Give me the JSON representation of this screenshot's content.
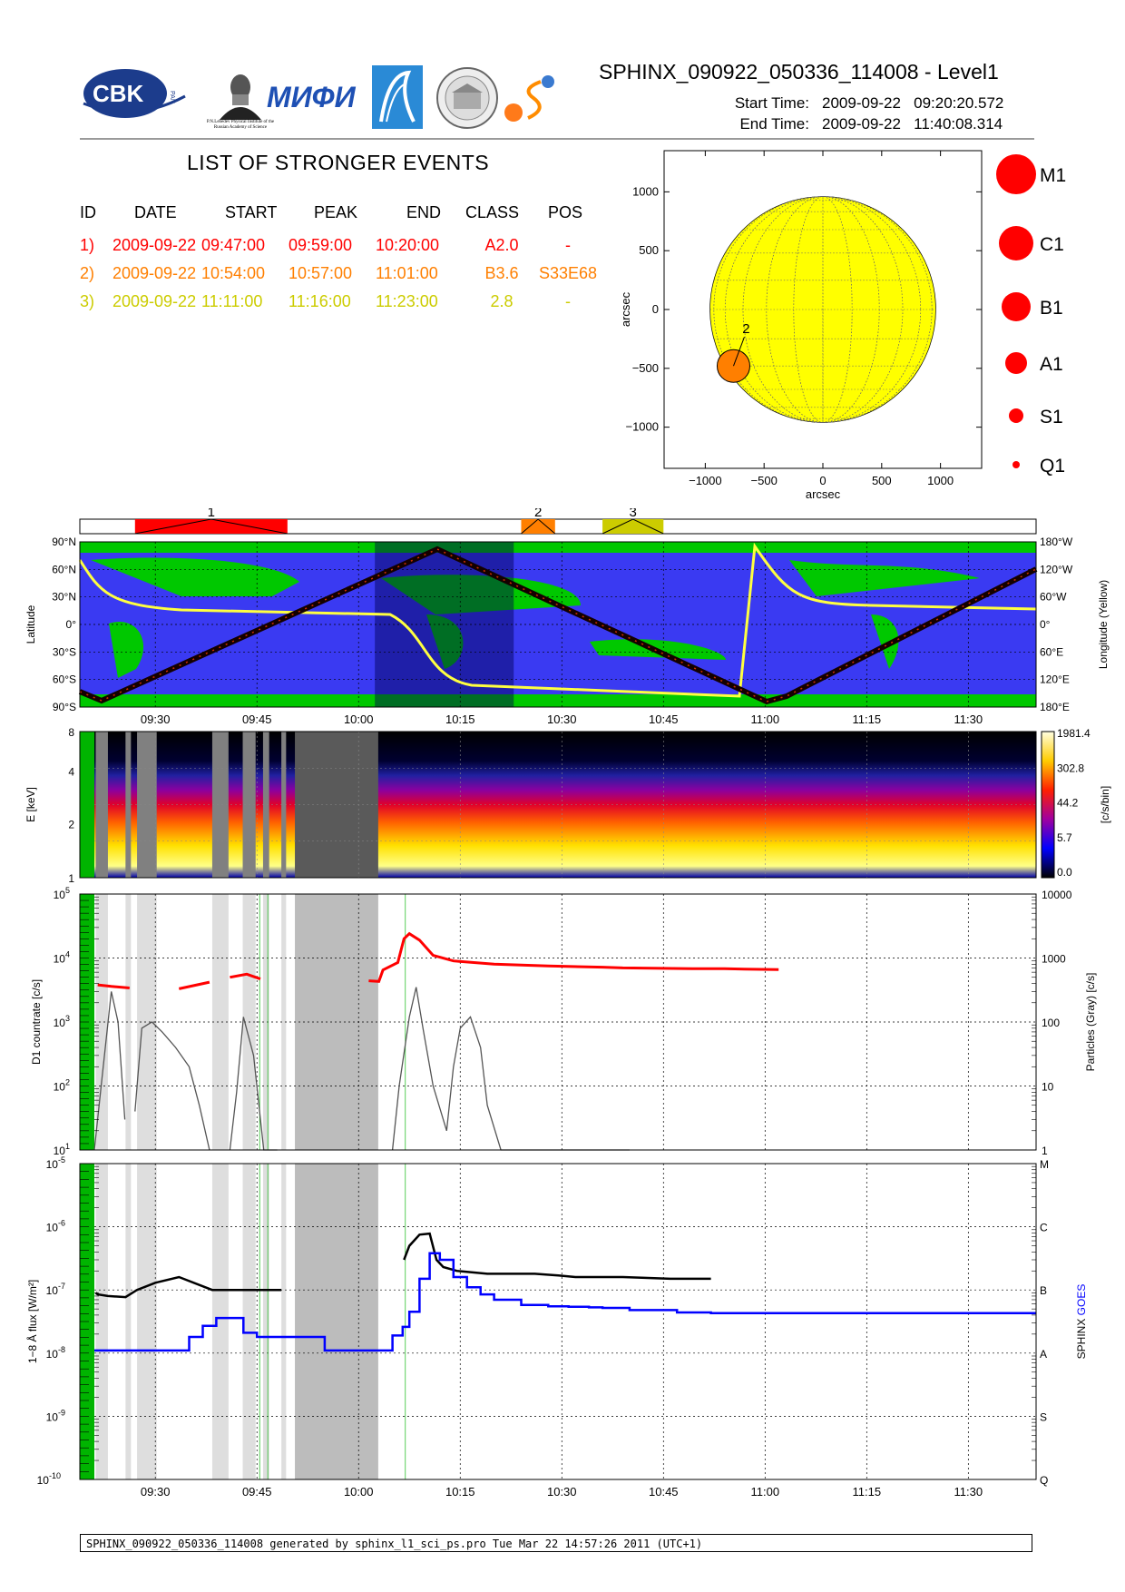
{
  "header": {
    "title": "SPHINX_090922_050336_114008 - Level1",
    "start_label": "Start Time:",
    "start_value": "2009-09-22   09:20:20.572",
    "end_label": "End Time:",
    "end_value": "2009-09-22   11:40:08.314",
    "logos": [
      {
        "name": "cbk-logo",
        "text": "CBK",
        "small": "PAN"
      },
      {
        "name": "lebedev-logo",
        "text": "P.N.Lebedev Physical Institute of the Russian Academy of Science"
      },
      {
        "name": "mifi-logo",
        "text": "MИФИ"
      },
      {
        "name": "delta-logo"
      },
      {
        "name": "seal-logo"
      },
      {
        "name": "sun-logo"
      }
    ]
  },
  "events": {
    "title": "LIST OF STRONGER EVENTS",
    "columns": [
      "ID",
      "DATE",
      "START",
      "PEAK",
      "END",
      "CLASS",
      "POS"
    ],
    "rows": [
      {
        "id": "1)",
        "date": "2009-09-22",
        "start": "09:47:00",
        "peak": "09:59:00",
        "end": "10:20:00",
        "class": "A2.0",
        "pos": "-",
        "color": "#ff0000"
      },
      {
        "id": "2)",
        "date": "2009-09-22",
        "start": "10:54:00",
        "peak": "10:57:00",
        "end": "11:01:00",
        "class": "B3.6",
        "pos": "S33E68",
        "color": "#ff7f00"
      },
      {
        "id": "3)",
        "date": "2009-09-22",
        "start": "11:11:00",
        "peak": "11:16:00",
        "end": "11:23:00",
        "class": "2.8",
        "pos": "-",
        "color": "#cccc00"
      }
    ]
  },
  "sun_map": {
    "xlabel": "arcsec",
    "ylabel": "arcsec",
    "x_ticks": [
      "−1000",
      "−500",
      "0",
      "500",
      "1000"
    ],
    "y_ticks": [
      "1000",
      "500",
      "0",
      "−500",
      "−1000"
    ],
    "xlim": [
      -1350,
      1350
    ],
    "ylim": [
      -1350,
      1350
    ],
    "disk_radius_arcsec": 960,
    "disk_color": "#ffff00",
    "event_marker": {
      "label": "2",
      "x": -760,
      "y": -480,
      "color": "#ff7f00"
    }
  },
  "class_legend": [
    "M1",
    "C1",
    "B1",
    "A1",
    "S1",
    "Q1"
  ],
  "legend_color": "#ff0000",
  "time_axis": {
    "start_min": 561,
    "end_min": 700,
    "tick_labels": [
      "09:30",
      "09:45",
      "10:00",
      "10:15",
      "10:30",
      "10:45",
      "11:00",
      "11:15",
      "11:30"
    ],
    "tick_mins": [
      570,
      585,
      600,
      615,
      630,
      645,
      660,
      675,
      690
    ]
  },
  "event_bar": {
    "labels": [
      "1",
      "2",
      "3"
    ],
    "spans": [
      [
        567,
        589.5
      ],
      [
        624,
        629
      ],
      [
        636,
        645
      ]
    ],
    "colors": [
      "#ff0000",
      "#ff7f00",
      "#cccc00"
    ]
  },
  "map_panel": {
    "ylabel": "Latitude",
    "y2label": "Longitude (Yellow)",
    "lat_ticks": [
      "90°N",
      "60°N",
      "30°N",
      "0°",
      "30°S",
      "60°S",
      "90°S"
    ],
    "lon_ticks": [
      "180°W",
      "120°W",
      "60°W",
      "0°",
      "60°E",
      "120°E",
      "180°E"
    ],
    "ocean_color": "#3a3af2",
    "land_color": "#00c800",
    "shade_span": [
      602.4,
      622.9
    ]
  },
  "spectrogram": {
    "ylabel": "E [keV]",
    "y_ticks": [
      "8",
      "4",
      "2",
      "1"
    ],
    "colorbar_ticks": [
      "1981.4",
      "302.8",
      "44.2",
      "5.7",
      "0.0"
    ],
    "colorbar_label": "[c/s/bin]"
  },
  "countrate_panel": {
    "ylabel": "D1 countrate [c/s]",
    "y2label": "Particles (Gray) [c/s]",
    "y_ticks": [
      "10^5",
      "10^4",
      "10^3",
      "10^2",
      "10^1"
    ],
    "y2_ticks": [
      "10000",
      "1000",
      "100",
      "10",
      "1"
    ],
    "ylim": [
      1,
      5
    ]
  },
  "flux_panel": {
    "ylabel": "1−8 Å flux [W/m²]",
    "y_ticks": [
      "10^-5",
      "10^-6",
      "10^-7",
      "10^-8",
      "10^-9",
      "10^-10"
    ],
    "class_ticks": [
      "M",
      "C",
      "B",
      "A",
      "S",
      "Q"
    ],
    "legend_sphinx": "SPHINX",
    "legend_goes": "GOES",
    "ylim": [
      -10,
      -5
    ]
  },
  "gaps": [
    [
      561.2,
      563.0
    ],
    [
      565.6,
      566.4
    ],
    [
      567.3,
      570.2
    ],
    [
      578.4,
      580.8
    ],
    [
      582.9,
      584.8
    ],
    [
      585.9,
      586.8
    ],
    [
      588.6,
      589.3
    ]
  ],
  "shade_dark": [
    [
      590.6,
      602.9
    ]
  ],
  "chart_data": [
    {
      "type": "line",
      "title": "D1 countrate",
      "xlabel": "",
      "ylabel": "D1 countrate [c/s]",
      "log_y": true,
      "ylim": [
        10,
        100000
      ],
      "series": [
        {
          "name": "",
          "color": "#ff0000",
          "x": [
            561.5,
            563.5,
            566.2,
            573.5,
            578,
            581,
            583.5,
            585.5,
            601.5,
            603,
            603.6,
            605.8,
            606.7,
            607.5,
            609,
            611,
            614,
            620,
            628,
            636,
            639,
            645,
            650,
            654,
            657,
            662
          ],
          "y": [
            3800,
            3600,
            3400,
            3300,
            4200,
            5000,
            5600,
            4700,
            4400,
            4300,
            6500,
            8500,
            20000,
            24000,
            19000,
            11000,
            9000,
            8000,
            7500,
            7200,
            7000,
            6900,
            6800,
            6800,
            6700,
            6600
          ]
        }
      ]
    },
    {
      "type": "line",
      "title": "Particles (Gray)",
      "ylabel": "Particles (Gray) [c/s]",
      "log_y": true,
      "ylim": [
        1,
        10000
      ],
      "series": [
        {
          "name": "",
          "color": "#555555",
          "x": [
            561,
            562,
            563.5,
            564.5,
            565.5,
            567,
            568,
            569.5,
            571,
            573,
            575,
            576.5,
            578,
            581,
            582,
            583,
            584.5,
            586,
            588,
            590,
            605,
            606,
            607.5,
            608.5,
            609.5,
            611,
            613,
            614,
            615,
            616.5,
            618,
            619,
            621,
            625,
            640
          ],
          "y": [
            1,
            10,
            300,
            100,
            3,
            4,
            80,
            100,
            70,
            40,
            20,
            5,
            1,
            1,
            8,
            120,
            30,
            1,
            1,
            1,
            1,
            10,
            120,
            350,
            80,
            10,
            2,
            20,
            80,
            120,
            40,
            5,
            1,
            1,
            1
          ]
        }
      ]
    },
    {
      "type": "line",
      "title": "1-8 Å flux",
      "ylabel": "1−8 Å flux [W/m²]",
      "log_y": true,
      "ylim": [
        1e-10,
        1e-05
      ],
      "series": [
        {
          "name": "SPHINX",
          "color": "#000000",
          "x": [
            561.2,
            561.5,
            563,
            565.6,
            567.3,
            570,
            573.5,
            578.4,
            581,
            583,
            585.9,
            586.8,
            588.6,
            606.7,
            607.5,
            609,
            610.5,
            611.5,
            612.5,
            614.5,
            619,
            621,
            626,
            629.5,
            632,
            639,
            646,
            652
          ],
          "y": [
            9e-08,
            8.5e-08,
            8e-08,
            7.7e-08,
            1e-07,
            1.3e-07,
            1.6e-07,
            1e-07,
            1e-07,
            1e-07,
            1e-07,
            1e-07,
            1e-07,
            3e-07,
            5e-07,
            7.5e-07,
            7.8e-07,
            3e-07,
            2.3e-07,
            2e-07,
            1.8e-07,
            1.8e-07,
            1.8e-07,
            1.7e-07,
            1.6e-07,
            1.6e-07,
            1.5e-07,
            1.5e-07
          ]
        },
        {
          "name": "GOES",
          "color": "#0000ff",
          "x": [
            561,
            568,
            573,
            575,
            577,
            579,
            580.5,
            583,
            585,
            590,
            595,
            600,
            605,
            606.5,
            607.5,
            609,
            610.5,
            612,
            614,
            616,
            618,
            620,
            624,
            628,
            631,
            634,
            636,
            640,
            647,
            652
          ],
          "y": [
            1.1e-08,
            1.1e-08,
            1.1e-08,
            1.8e-08,
            2.7e-08,
            3.6e-08,
            3.6e-08,
            2.1e-08,
            1.8e-08,
            1.8e-08,
            1.1e-08,
            1.1e-08,
            1.9e-08,
            2.6e-08,
            4.5e-08,
            1.5e-07,
            3.8e-07,
            3e-07,
            1.6e-07,
            1.1e-07,
            8.5e-08,
            7e-08,
            5.8e-08,
            5.5e-08,
            5.4e-08,
            5.3e-08,
            5.2e-08,
            4.8e-08,
            4.4e-08,
            4.3e-08
          ]
        }
      ]
    }
  ],
  "footer": {
    "text": "SPHINX_090922_050336_114008 generated by sphinx_l1_sci_ps.pro Tue Mar 22 14:57:26 2011 (UTC+1)"
  }
}
